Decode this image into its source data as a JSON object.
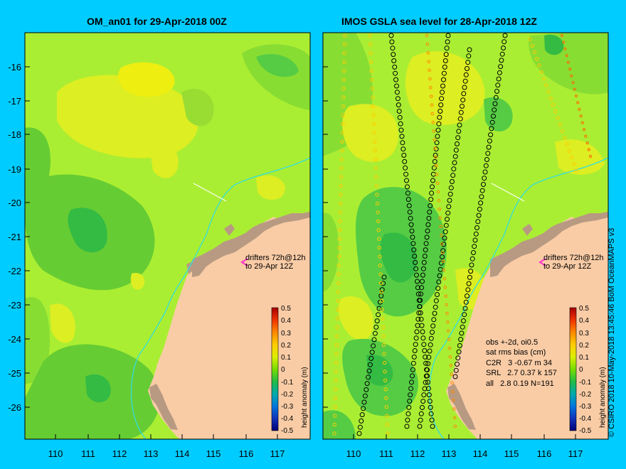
{
  "titles": {
    "left": "OM_an01 for 29-Apr-2018 00Z",
    "right": "IMOS GSLA sea level  for 28-Apr-2018 12Z"
  },
  "axes": {
    "lat_ticks": [
      "-16",
      "-17",
      "-18",
      "-19",
      "-20",
      "-21",
      "-22",
      "-23",
      "-24",
      "-25",
      "-26"
    ],
    "lon_ticks": [
      "110",
      "111",
      "112",
      "113",
      "114",
      "115",
      "116",
      "117"
    ]
  },
  "colorbar": {
    "ticks": [
      "0.5",
      "0.4",
      "0.3",
      "0.2",
      "0.1",
      "0",
      "-0.1",
      "-0.2",
      "-0.3",
      "-0.4",
      "-0.5"
    ],
    "label": "height anomaly (m)"
  },
  "drifter_note": {
    "line1": "drifters 72h@12h",
    "line2": "to 29-Apr 12Z"
  },
  "stats": {
    "line1": "obs +-2d, oi0.5",
    "line2": "sat rms bias (cm)",
    "line3": "C2R   3 -0.67 m 34",
    "line4": "SRL   2.7 0.37 k 157",
    "line5": "all   2.8 0.19 N=191"
  },
  "credit": "© CSIRO 2018  10-May-2018 13:45:46 BoM OceanMAPS v3",
  "colors": {
    "background": "#00ccff",
    "sea_base": "#aaee33",
    "land": "#f9cca6",
    "island": "#b89a82",
    "shelf_line": "#33dddd",
    "drifter": "#ff33cc"
  }
}
